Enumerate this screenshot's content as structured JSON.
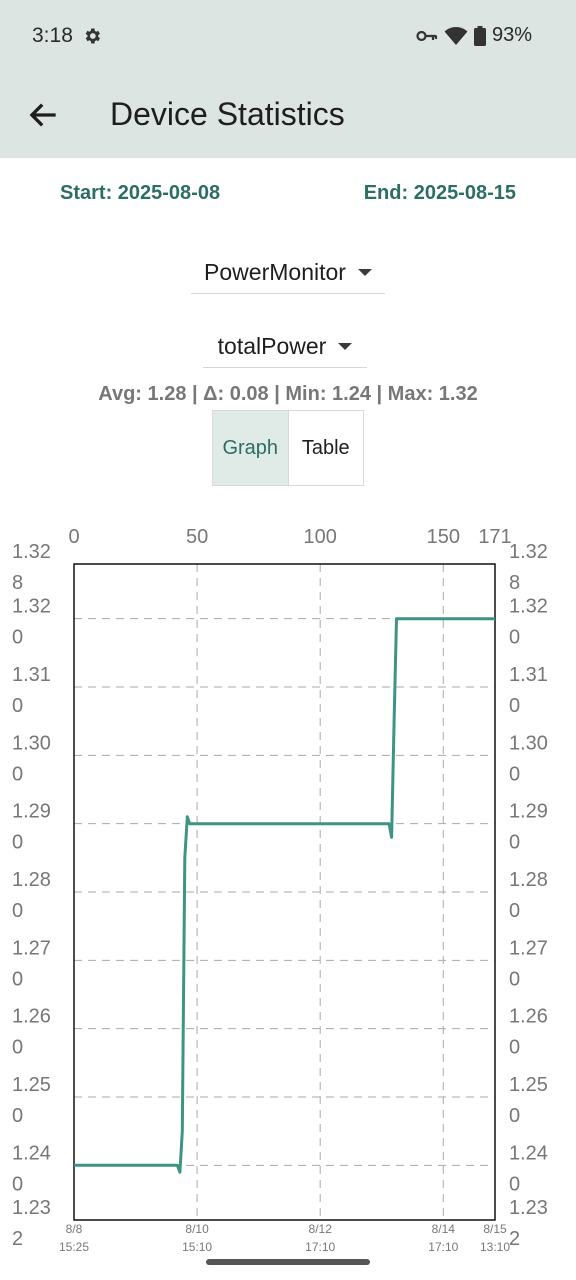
{
  "status_bar": {
    "time": "3:18",
    "battery": "93%"
  },
  "header": {
    "title": "Device Statistics"
  },
  "range": {
    "start": "Start: 2025-08-08",
    "end": "End: 2025-08-15"
  },
  "device_select": {
    "value": "PowerMonitor"
  },
  "metric_select": {
    "value": "totalPower"
  },
  "stats": "Avg: 1.28 | Δ: 0.08 | Min: 1.24 | Max: 1.32",
  "view_toggle": {
    "graph": "Graph",
    "table": "Table",
    "selected": "graph"
  },
  "chart_data": {
    "type": "line",
    "series": [
      {
        "x": [
          0,
          42,
          43,
          44,
          45,
          46,
          47,
          128,
          129,
          130,
          131,
          171
        ],
        "values": [
          1.24,
          1.24,
          1.239,
          1.245,
          1.285,
          1.291,
          1.29,
          1.29,
          1.288,
          1.305,
          1.32,
          1.32
        ]
      }
    ],
    "top_x_ticks": [
      {
        "value": 0,
        "label": "0"
      },
      {
        "value": 50,
        "label": "50"
      },
      {
        "value": 100,
        "label": "100"
      },
      {
        "value": 150,
        "label": "150"
      },
      {
        "value": 171,
        "label": "171"
      }
    ],
    "bottom_x_ticks": [
      {
        "value": 0,
        "line1": "8/8",
        "line2": "15:25"
      },
      {
        "value": 50,
        "line1": "8/10",
        "line2": "15:10"
      },
      {
        "value": 100,
        "line1": "8/12",
        "line2": "17:10"
      },
      {
        "value": 150,
        "line1": "8/14",
        "line2": "17:10"
      },
      {
        "value": 171,
        "line1": "8/15",
        "line2": "13:10"
      }
    ],
    "y_ticks": [
      {
        "value": 1.328,
        "line1": "1.32",
        "line2": "8"
      },
      {
        "value": 1.32,
        "line1": "1.32",
        "line2": "0"
      },
      {
        "value": 1.31,
        "line1": "1.31",
        "line2": "0"
      },
      {
        "value": 1.3,
        "line1": "1.30",
        "line2": "0"
      },
      {
        "value": 1.29,
        "line1": "1.29",
        "line2": "0"
      },
      {
        "value": 1.28,
        "line1": "1.28",
        "line2": "0"
      },
      {
        "value": 1.27,
        "line1": "1.27",
        "line2": "0"
      },
      {
        "value": 1.26,
        "line1": "1.26",
        "line2": "0"
      },
      {
        "value": 1.25,
        "line1": "1.25",
        "line2": "0"
      },
      {
        "value": 1.24,
        "line1": "1.24",
        "line2": "0"
      },
      {
        "value": 1.232,
        "line1": "1.23",
        "line2": "2"
      }
    ],
    "xlim": [
      0,
      171
    ],
    "ylim": [
      1.232,
      1.328
    ],
    "grid": true,
    "line_color": "#3e9484"
  }
}
